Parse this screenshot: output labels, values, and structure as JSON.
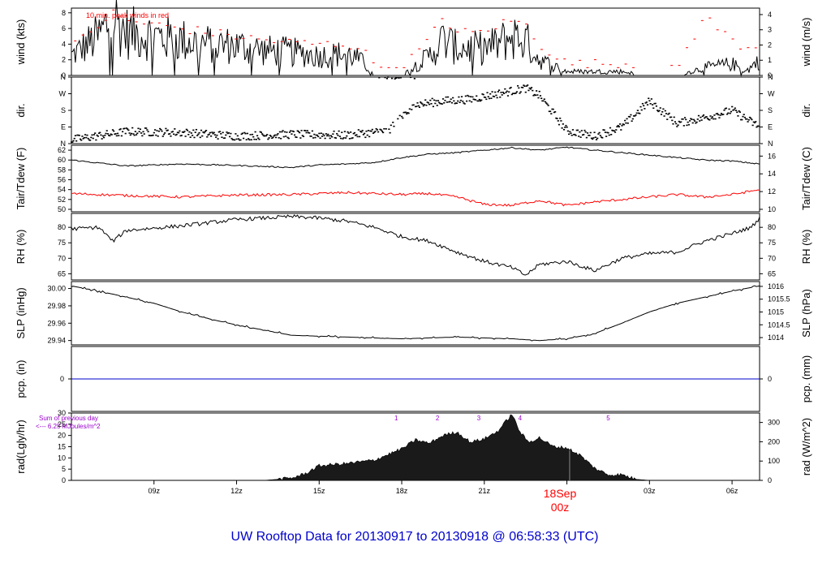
{
  "title": "UW Rooftop Data for 20130917  to  20130918 @ 06:58:33  (UTC)",
  "colors": {
    "black": "#000000",
    "red": "#ff0000",
    "blue": "#0000cc",
    "purple": "#9900cc",
    "title": "#0000cc"
  },
  "x_axis": {
    "ticks": [
      "09z",
      "12z",
      "15z",
      "18z",
      "21z",
      "00z",
      "03z",
      "06z"
    ],
    "day_label": "18Sep",
    "day_sub": "00z"
  },
  "panels": {
    "wind": {
      "left_label": "wind (kts)",
      "right_label": "wind (m/s)",
      "annotation": "10 min. peak winds in red",
      "left_ticks": [
        "0",
        "2",
        "4",
        "6",
        "8"
      ],
      "right_ticks": [
        "0",
        "1",
        "2",
        "3",
        "4"
      ]
    },
    "dir": {
      "left_label": "dir.",
      "right_label": "dir.",
      "ticks": [
        "N",
        "E",
        "S",
        "W",
        "N"
      ]
    },
    "temp": {
      "left_label": "Tair/Tdew (F)",
      "right_label": "Tair/Tdew (C)",
      "left_ticks": [
        "50",
        "52",
        "54",
        "56",
        "58",
        "60",
        "62"
      ],
      "right_ticks": [
        "10",
        "12",
        "14",
        "16"
      ]
    },
    "rh": {
      "left_label": "RH (%)",
      "right_label": "RH (%)",
      "left_ticks": [
        "65",
        "70",
        "75",
        "80"
      ],
      "right_ticks": [
        "65",
        "70",
        "75",
        "80"
      ]
    },
    "slp": {
      "left_label": "SLP (inHg)",
      "right_label": "SLP (hPa)",
      "left_ticks": [
        "29.94",
        "29.96",
        "29.98",
        "30.00"
      ],
      "right_ticks": [
        "1014",
        "1014.5",
        "1015",
        "1015.5",
        "1016"
      ]
    },
    "pcp": {
      "left_label": "pcp. (in)",
      "right_label": "pcp. (mm)",
      "left_ticks": [
        "0"
      ],
      "right_ticks": [
        "0"
      ]
    },
    "rad": {
      "left_label": "rad(Lgly/hr)",
      "right_label": "rad (W/m^2)",
      "left_ticks": [
        "0",
        "5",
        "10",
        "15",
        "20",
        "25",
        "30"
      ],
      "right_ticks": [
        "0",
        "100",
        "200",
        "300"
      ],
      "note_line1": "Sum of previous day",
      "note_line2": "<--- 6.25 MJoules/m^2",
      "markers": [
        "1",
        "2",
        "3",
        "4",
        "5"
      ]
    }
  },
  "chart_data": [
    {
      "type": "line",
      "panel": "wind",
      "ylabel": "wind (kts)",
      "ylim": [
        0,
        8.6
      ],
      "x_hours": [
        6.0,
        7.0,
        7.5,
        8.0,
        9.0,
        10.0,
        11.0,
        12.0,
        13.0,
        14.0,
        15.0,
        16.0,
        16.5,
        17.0,
        18.0,
        19.0,
        19.5,
        20.0,
        21.0,
        21.5,
        22.0,
        22.5,
        23.0,
        24.0,
        25.0,
        26.0,
        27.0,
        28.0,
        29.0,
        30.0,
        30.5,
        31.0
      ],
      "series": [
        {
          "name": "wind",
          "values": [
            2.5,
            5.0,
            7.5,
            5.5,
            5.0,
            4.5,
            4.0,
            3.8,
            3.2,
            3.0,
            2.5,
            2.8,
            2.0,
            0.0,
            0.0,
            2.5,
            4.5,
            3.5,
            3.5,
            4.0,
            5.0,
            4.5,
            2.0,
            0.5,
            0.5,
            0.5,
            0.0,
            0.0,
            1.0,
            1.5,
            0.5,
            2.0
          ]
        },
        {
          "name": "10 min. peak winds in red",
          "values": [
            3.5,
            6.5,
            8.0,
            7.0,
            6.5,
            6.0,
            5.5,
            5.0,
            4.5,
            4.2,
            4.0,
            4.0,
            3.5,
            1.5,
            1.0,
            4.5,
            7.5,
            5.5,
            5.5,
            6.5,
            7.0,
            6.5,
            4.0,
            1.5,
            1.5,
            1.5,
            1.0,
            1.0,
            7.5,
            4.5,
            3.5,
            4.0
          ]
        }
      ]
    },
    {
      "type": "scatter",
      "panel": "dir",
      "ylabel": "dir.",
      "ylim": [
        0,
        360
      ],
      "x_hours": [
        6.0,
        8.0,
        10.0,
        12.0,
        14.0,
        16.0,
        17.5,
        18.5,
        19.5,
        20.5,
        21.5,
        22.5,
        23.0,
        24.0,
        25.0,
        26.0,
        27.0,
        28.0,
        29.0,
        30.0,
        31.0
      ],
      "series": [
        {
          "name": "dir",
          "values": [
            20,
            65,
            60,
            40,
            50,
            45,
            70,
            210,
            230,
            240,
            270,
            300,
            260,
            70,
            40,
            90,
            230,
            110,
            140,
            180,
            90
          ]
        }
      ]
    },
    {
      "type": "line",
      "panel": "temp",
      "ylabel": "Tair/Tdew (F)",
      "ylim": [
        49.5,
        63
      ],
      "x_hours": [
        6.0,
        8.0,
        10.0,
        12.0,
        14.0,
        15.0,
        16.0,
        17.0,
        18.0,
        19.0,
        20.0,
        21.0,
        22.0,
        23.0,
        24.0,
        25.0,
        26.0,
        27.0,
        28.0,
        29.0,
        30.0,
        31.0
      ],
      "series": [
        {
          "name": "Tair",
          "values": [
            60.0,
            58.8,
            59.2,
            58.9,
            58.5,
            59.0,
            59.2,
            59.5,
            60.5,
            61.2,
            61.5,
            62.0,
            62.5,
            62.0,
            62.6,
            62.0,
            61.5,
            61.0,
            60.5,
            60.0,
            59.8,
            59.2
          ]
        },
        {
          "name": "Tdew",
          "values": [
            53.2,
            52.8,
            52.5,
            52.9,
            53.0,
            53.2,
            53.4,
            53.2,
            53.0,
            53.2,
            52.5,
            51.0,
            50.8,
            51.8,
            50.8,
            51.5,
            52.0,
            52.5,
            53.0,
            52.5,
            53.0,
            54.0
          ]
        }
      ]
    },
    {
      "type": "line",
      "panel": "rh",
      "ylabel": "RH (%)",
      "ylim": [
        63,
        84.5
      ],
      "x_hours": [
        6.0,
        7.0,
        7.5,
        8.0,
        10.0,
        12.0,
        14.0,
        15.0,
        16.0,
        17.0,
        18.0,
        19.0,
        20.0,
        21.0,
        22.0,
        22.5,
        23.0,
        24.0,
        25.0,
        26.0,
        27.0,
        28.0,
        29.0,
        30.0,
        30.7,
        31.0
      ],
      "series": [
        {
          "name": "RH",
          "values": [
            79.5,
            80.0,
            75.5,
            79.0,
            80.5,
            82.5,
            83.5,
            83.0,
            82.0,
            80.0,
            77.0,
            75.5,
            72.0,
            69.0,
            67.0,
            64.5,
            68.0,
            69.0,
            66.0,
            70.0,
            71.5,
            72.0,
            75.5,
            78.0,
            80.0,
            83.0
          ]
        }
      ]
    },
    {
      "type": "line",
      "panel": "slp",
      "ylabel": "SLP (inHg)",
      "ylim": [
        29.935,
        30.008
      ],
      "x_hours": [
        6.0,
        7.0,
        8.0,
        9.0,
        10.0,
        11.0,
        12.0,
        13.0,
        14.0,
        16.0,
        18.0,
        20.0,
        22.0,
        23.0,
        24.0,
        25.0,
        26.0,
        27.0,
        28.0,
        29.0,
        30.0,
        31.0
      ],
      "series": [
        {
          "name": "SLP",
          "values": [
            30.003,
            29.997,
            29.99,
            29.983,
            29.973,
            29.965,
            29.958,
            29.952,
            29.946,
            29.944,
            29.942,
            29.944,
            29.942,
            29.94,
            29.942,
            29.948,
            29.96,
            29.973,
            29.983,
            29.99,
            29.997,
            30.003
          ]
        }
      ]
    },
    {
      "type": "line",
      "panel": "pcp",
      "ylabel": "pcp. (in)",
      "ylim": [
        -1,
        1
      ],
      "x_hours": [
        6.0,
        31.0
      ],
      "series": [
        {
          "name": "pcp",
          "values": [
            0,
            0
          ]
        }
      ]
    },
    {
      "type": "area",
      "panel": "rad",
      "ylabel": "rad(Lgly/hr)",
      "ylim": [
        0,
        30
      ],
      "x_hours": [
        6.0,
        13.0,
        14.0,
        14.5,
        15.0,
        16.0,
        17.0,
        18.0,
        18.5,
        19.0,
        19.5,
        20.0,
        20.5,
        21.0,
        21.5,
        22.0,
        22.3,
        22.6,
        23.0,
        23.5,
        24.0,
        24.5,
        25.0,
        25.5,
        26.0,
        26.5,
        27.0,
        31.0
      ],
      "series": [
        {
          "name": "rad",
          "values": [
            0,
            0,
            1.0,
            3.0,
            6.5,
            7.5,
            9.0,
            14.0,
            18.0,
            16.5,
            20.0,
            21.5,
            17.0,
            18.5,
            22.0,
            29.5,
            21.5,
            17.0,
            19.0,
            15.0,
            14.5,
            11.0,
            5.5,
            2.5,
            2.5,
            0.5,
            0,
            0
          ]
        }
      ]
    }
  ]
}
